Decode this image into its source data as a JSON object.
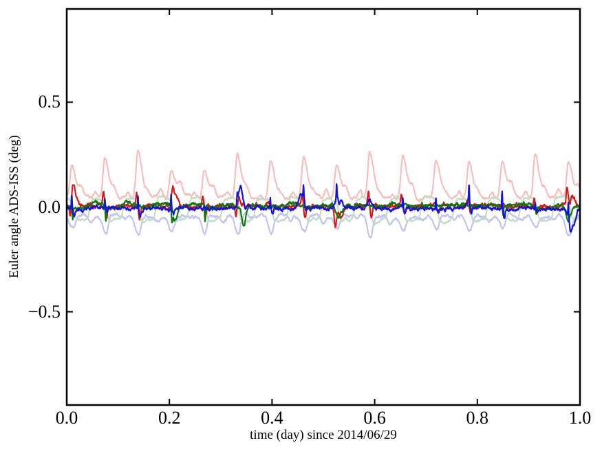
{
  "chart_data": {
    "type": "line",
    "title": "",
    "xlabel": "time (day) since 2014/06/29",
    "ylabel": "Euler angle ADS-ISS (deg)",
    "xlim": [
      0.0,
      1.0
    ],
    "ylim": [
      -0.945,
      0.945
    ],
    "xticks": [
      {
        "value": 0.0,
        "label": "0.0"
      },
      {
        "value": 0.2,
        "label": "0.2"
      },
      {
        "value": 0.4,
        "label": "0.4"
      },
      {
        "value": 0.6,
        "label": "0.6"
      },
      {
        "value": 0.8,
        "label": "0.8"
      },
      {
        "value": 1.0,
        "label": "1.0"
      }
    ],
    "yticks": [
      {
        "value": 0.5,
        "label": "0.5"
      },
      {
        "value": 0.0,
        "label": "0.0"
      },
      {
        "value": -0.5,
        "label": "−0.5"
      }
    ],
    "grid": false,
    "legend": null,
    "background": "#ffffff",
    "axis_color": "#000000",
    "orbits_per_day": 15.5,
    "orbital_period_day": 0.0645,
    "phase_offset": 0.0225,
    "n_samples": 1800,
    "seed": 20140629,
    "series": [
      {
        "key": "pale-red",
        "color": "#f8bcb9",
        "linewidth": 2.1,
        "description": "periodic positive peaks, ~15.5 cycles/day, baseline ~0.05 deg, peaks 0.18-0.27 deg",
        "model": {
          "kind": "orbit-peaks",
          "baseline": 0.045,
          "peak_min": 0.12,
          "peak_max": 0.22,
          "peak_phase": 0.5,
          "rise_sigma": 0.055,
          "fall_sigma": 0.115,
          "shoulder_amp": 0.045,
          "noise": 0.008,
          "clamp": [
            0.015,
            0.3
          ]
        }
      },
      {
        "key": "pale-blue",
        "color": "#bfc3f4",
        "linewidth": 2.1,
        "description": "periodic negative dips, baseline ~-0.05 deg, dips to -0.16 deg",
        "model": {
          "kind": "orbit-dips",
          "baseline": -0.042,
          "dip_min": 0.05,
          "dip_max": 0.115,
          "dip_phase": 0.53,
          "rise_sigma": 0.1,
          "fall_sigma": 0.07,
          "noise": 0.008,
          "clamp": [
            -0.185,
            -0.004
          ]
        }
      },
      {
        "key": "pale-green",
        "color": "#c4dcc3",
        "linewidth": 2.1,
        "description": "square-ish oscillation about zero, +0.04 / -0.07 deg",
        "model": {
          "kind": "orbit-square",
          "amp_pos": 0.042,
          "amp_neg": 0.062,
          "phase": 0.05,
          "noise": 0.007,
          "clamp": [
            -0.105,
            0.08
          ]
        }
      },
      {
        "key": "red",
        "color": "#e01414",
        "linewidth": 2.1,
        "description": "noisy near zero with rounded up/down excursions to ±0.08 deg",
        "model": {
          "kind": "noisy-wiggle",
          "offset": 0.004,
          "noise": 0.013,
          "feat_prob": 0.75,
          "feat_min": 0.02,
          "feat_max": 0.075,
          "clamp": [
            -0.115,
            0.105
          ]
        }
      },
      {
        "key": "green",
        "color": "#0a780a",
        "linewidth": 2.1,
        "description": "noisy near zero with sharp downward spikes to -0.10 deg",
        "model": {
          "kind": "noisy-downspike",
          "offset": 0.007,
          "noise": 0.01,
          "feat_prob": 0.45,
          "feat_min": 0.03,
          "feat_max": 0.085,
          "clamp": [
            -0.12,
            0.07
          ]
        }
      },
      {
        "key": "blue",
        "color": "#1414dd",
        "linewidth": 2.2,
        "description": "noisy near zero with sharp upward spikes to +0.12 deg",
        "model": {
          "kind": "noisy-upspike",
          "offset": -0.006,
          "noise": 0.011,
          "feat_prob": 0.55,
          "feat_min": 0.035,
          "feat_max": 0.09,
          "clamp": [
            -0.12,
            0.125
          ]
        }
      }
    ],
    "events": [
      {
        "series": "blue",
        "t": 0.338,
        "amp": 0.115,
        "width": 0.004
      },
      {
        "series": "blue",
        "t": 0.455,
        "amp": 0.055,
        "width": 0.004
      },
      {
        "series": "blue",
        "t": 0.53,
        "amp": 0.065,
        "width": 0.005
      },
      {
        "series": "blue",
        "t": 0.985,
        "amp": -0.1,
        "width": 0.006
      },
      {
        "series": "green",
        "t": 0.21,
        "amp": -0.07,
        "width": 0.004
      },
      {
        "series": "green",
        "t": 0.345,
        "amp": -0.1,
        "width": 0.004
      },
      {
        "series": "green",
        "t": 0.53,
        "amp": -0.055,
        "width": 0.005
      },
      {
        "series": "green",
        "t": 0.977,
        "amp": -0.075,
        "width": 0.005
      },
      {
        "series": "red",
        "t": 0.015,
        "amp": 0.06,
        "width": 0.005
      },
      {
        "series": "red",
        "t": 0.21,
        "amp": 0.065,
        "width": 0.006
      },
      {
        "series": "red",
        "t": 0.53,
        "amp": -0.085,
        "width": 0.006
      },
      {
        "series": "red",
        "t": 0.982,
        "amp": 0.06,
        "width": 0.006
      }
    ]
  }
}
